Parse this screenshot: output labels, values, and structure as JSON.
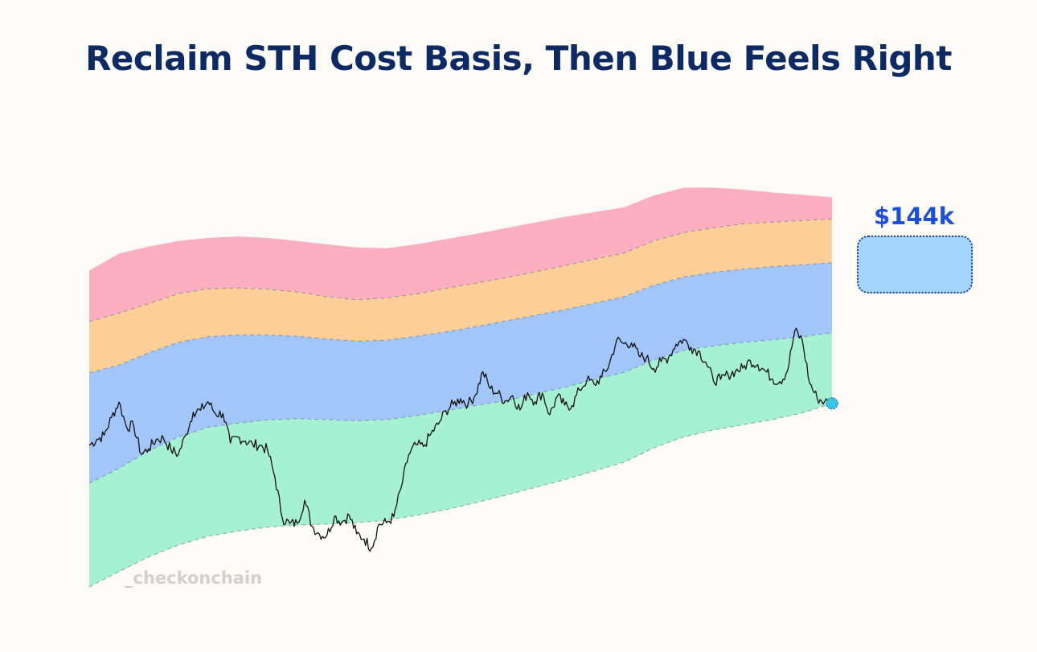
{
  "title": "Reclaim STH Cost Basis, Then Blue Feels Right",
  "watermark": "_checkonchain",
  "callout": {
    "label": "$144k"
  },
  "colors": {
    "background": "#fdfbf7",
    "title": "#0d2a64",
    "band_red": "#fcafc0",
    "band_orange": "#fccf98",
    "band_blue": "#a2c6f9",
    "band_green": "#a6f0d3",
    "price_line": "#111111",
    "last_point": "#35c9e6",
    "callout_fill": "#a6d5fb",
    "callout_text": "#1d4fd8"
  },
  "chart_data": {
    "type": "area",
    "xlim": [
      0,
      100
    ],
    "ylim": [
      0,
      100
    ],
    "grid": false,
    "legend": "none",
    "x": [
      0,
      4,
      8,
      12,
      16,
      20,
      24,
      28,
      32,
      36,
      40,
      44,
      48,
      52,
      56,
      60,
      64,
      68,
      72,
      76,
      80,
      84,
      88,
      92,
      96,
      100
    ],
    "bands": [
      {
        "color": "red",
        "lower": [
          60.9,
          62.8,
          65.0,
          67.3,
          68.4,
          68.6,
          68.3,
          67.7,
          66.6,
          65.9,
          66.3,
          67.2,
          68.5,
          69.7,
          70.9,
          72.3,
          73.7,
          75.2,
          76.6,
          79.4,
          81.3,
          82.4,
          83.3,
          83.7,
          84.1,
          84.4
        ],
        "upper": [
          72.6,
          76.5,
          78.1,
          79.4,
          80.1,
          80.4,
          80.1,
          79.4,
          78.6,
          77.9,
          77.7,
          78.6,
          79.8,
          81.0,
          82.3,
          83.6,
          84.9,
          86.0,
          87.1,
          89.8,
          91.6,
          91.6,
          91.2,
          90.5,
          90.0,
          89.4
        ]
      },
      {
        "color": "orange",
        "lower": [
          49.1,
          50.9,
          53.7,
          56.1,
          57.4,
          57.8,
          57.8,
          57.5,
          56.9,
          56.4,
          56.6,
          57.5,
          58.5,
          59.7,
          61.0,
          62.3,
          63.6,
          65.1,
          66.6,
          69.2,
          71.1,
          72.2,
          72.9,
          73.5,
          73.9,
          74.4
        ],
        "upper": [
          60.9,
          62.8,
          65.0,
          67.3,
          68.4,
          68.6,
          68.3,
          67.7,
          66.6,
          65.9,
          66.3,
          67.2,
          68.5,
          69.7,
          70.9,
          72.3,
          73.7,
          75.2,
          76.6,
          79.4,
          81.3,
          82.4,
          83.3,
          83.7,
          84.1,
          84.4
        ]
      },
      {
        "color": "blue",
        "lower": [
          23.8,
          27.2,
          31.2,
          34.4,
          36.6,
          37.6,
          38.3,
          38.6,
          38.4,
          38.1,
          38.4,
          39.3,
          40.4,
          41.6,
          42.7,
          44.3,
          45.8,
          47.6,
          49.2,
          52.1,
          54.3,
          55.3,
          56.1,
          56.7,
          57.4,
          58.3
        ],
        "upper": [
          49.1,
          50.9,
          53.7,
          56.1,
          57.4,
          57.8,
          57.8,
          57.5,
          56.9,
          56.4,
          56.6,
          57.5,
          58.5,
          59.7,
          61.0,
          62.3,
          63.6,
          65.1,
          66.6,
          69.2,
          71.1,
          72.2,
          72.9,
          73.5,
          73.9,
          74.4
        ]
      },
      {
        "color": "green",
        "lower": [
          0.0,
          3.5,
          6.9,
          9.6,
          11.6,
          12.8,
          13.7,
          14.2,
          14.4,
          14.7,
          15.3,
          16.4,
          17.7,
          19.3,
          21.0,
          22.8,
          24.6,
          26.6,
          28.6,
          31.9,
          34.4,
          36.0,
          37.2,
          38.4,
          39.9,
          42.1
        ],
        "upper": [
          23.8,
          27.2,
          31.2,
          34.4,
          36.6,
          37.6,
          38.3,
          38.6,
          38.4,
          38.1,
          38.4,
          39.3,
          40.4,
          41.6,
          42.7,
          44.3,
          45.8,
          47.6,
          49.2,
          52.1,
          54.3,
          55.3,
          56.1,
          56.7,
          57.4,
          58.3
        ]
      }
    ],
    "price": {
      "x": [
        0,
        1,
        2,
        3,
        4,
        5,
        6,
        7,
        8,
        9,
        10,
        11,
        12,
        13,
        14,
        15,
        16,
        17,
        18,
        19,
        20,
        21,
        22,
        23,
        24,
        25,
        26,
        27,
        28,
        29,
        30,
        31,
        32,
        33,
        34,
        35,
        36,
        37,
        38,
        39,
        40,
        41,
        42,
        43,
        44,
        45,
        46,
        47,
        48,
        49,
        50,
        51,
        52,
        53,
        54,
        55,
        56,
        57,
        58,
        59,
        60,
        61,
        62,
        63,
        64,
        65,
        66,
        67,
        68,
        69,
        70,
        71,
        72,
        73,
        74,
        75,
        76,
        77,
        78,
        79,
        80,
        81,
        82,
        83,
        84,
        85,
        86,
        87,
        88,
        89,
        90,
        91,
        92,
        93,
        94,
        95,
        96,
        97,
        98,
        99,
        100
      ],
      "y": [
        32.5,
        33.8,
        34.8,
        38.9,
        42.4,
        36.8,
        36.9,
        30.5,
        31.7,
        33.8,
        34.1,
        31.5,
        30.4,
        34.9,
        40.1,
        40.5,
        42.5,
        39.7,
        39.8,
        33.0,
        34.4,
        33.5,
        32.7,
        32.5,
        31.4,
        25.2,
        15.8,
        14.5,
        14.6,
        19.9,
        13.9,
        12.1,
        11.8,
        16.2,
        14.9,
        16.4,
        12.2,
        11.0,
        8.9,
        14.4,
        14.7,
        16.1,
        22.8,
        30.3,
        32.6,
        32.2,
        35.1,
        37.3,
        40.4,
        41.9,
        43.2,
        41.9,
        44.1,
        49.4,
        45.5,
        44.4,
        42.6,
        43.9,
        40.6,
        44.6,
        42.5,
        44.5,
        39.5,
        43.7,
        41.7,
        41.6,
        45.2,
        47.5,
        46.5,
        48.2,
        51.0,
        56.6,
        55.8,
        56.0,
        53.0,
        52.6,
        50.1,
        51.7,
        52.7,
        55.7,
        56.8,
        55.0,
        54.2,
        51.6,
        47.5,
        47.6,
        48.7,
        49.5,
        50.2,
        51.9,
        51.0,
        49.6,
        47.7,
        47.1,
        49.6,
        58.8,
        56.6,
        46.7,
        43.3,
        42.5,
        42.1
      ]
    },
    "last_point": {
      "x": 100,
      "y": 42.1
    },
    "callout_value": "$144k"
  }
}
